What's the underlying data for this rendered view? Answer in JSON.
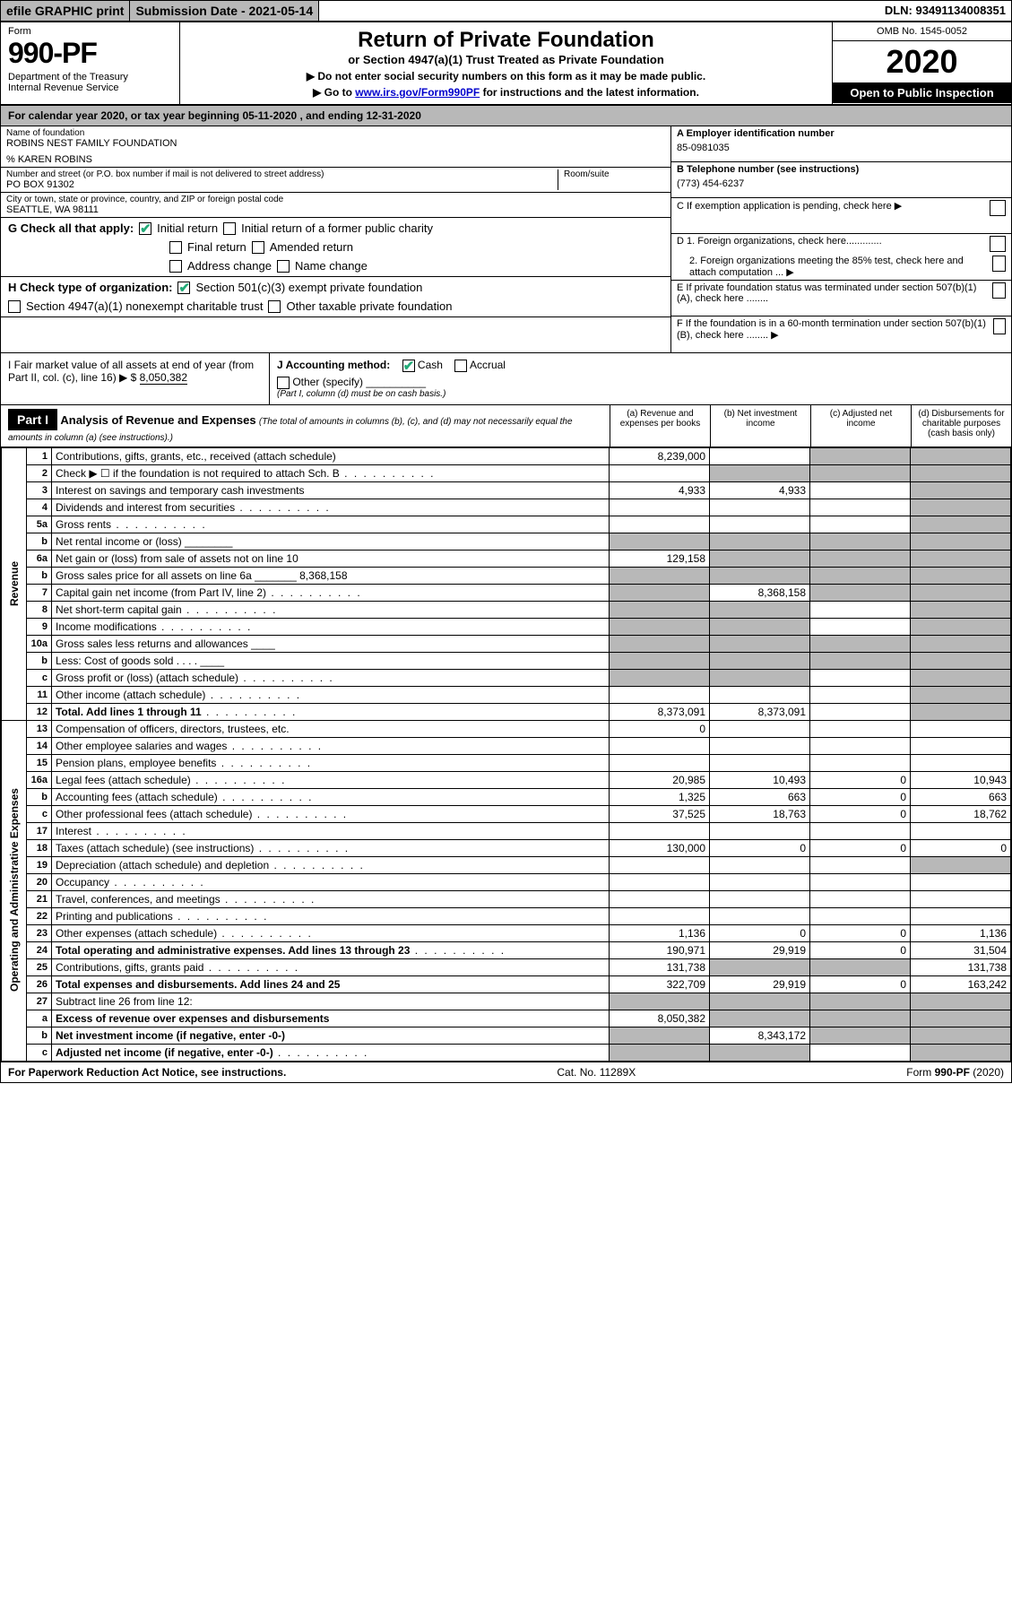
{
  "top": {
    "efile": "efile GRAPHIC print",
    "submission": "Submission Date - 2021-05-14",
    "dln": "DLN: 93491134008351"
  },
  "header": {
    "form_label": "Form",
    "form_number": "990-PF",
    "dept": "Department of the Treasury\nInternal Revenue Service",
    "title": "Return of Private Foundation",
    "subtitle": "or Section 4947(a)(1) Trust Treated as Private Foundation",
    "note1": "▶ Do not enter social security numbers on this form as it may be made public.",
    "note2": "▶ Go to ",
    "link": "www.irs.gov/Form990PF",
    "note2b": " for instructions and the latest information.",
    "omb": "OMB No. 1545-0052",
    "year": "2020",
    "inspect": "Open to Public Inspection"
  },
  "cal_year": "For calendar year 2020, or tax year beginning 05-11-2020                           , and ending 12-31-2020",
  "foundation": {
    "name_label": "Name of foundation",
    "name": "ROBINS NEST FAMILY FOUNDATION",
    "care_of": "% KAREN ROBINS",
    "street_label": "Number and street (or P.O. box number if mail is not delivered to street address)",
    "street": "PO BOX 91302",
    "room_label": "Room/suite",
    "city_label": "City or town, state or province, country, and ZIP or foreign postal code",
    "city": "SEATTLE, WA  98111",
    "ein_label": "A Employer identification number",
    "ein": "85-0981035",
    "phone_label": "B Telephone number (see instructions)",
    "phone": "(773) 454-6237",
    "c_label": "C If exemption application is pending, check here ▶",
    "d1": "D 1. Foreign organizations, check here.............",
    "d2": "2. Foreign organizations meeting the 85% test, check here and attach computation ...  ▶",
    "e": "E  If private foundation status was terminated under section 507(b)(1)(A), check here ........",
    "f": "F  If the foundation is in a 60-month termination under section 507(b)(1)(B), check here ........  ▶"
  },
  "g": {
    "label": "G Check all that apply:",
    "initial": "Initial return",
    "initial_former": "Initial return of a former public charity",
    "final": "Final return",
    "amended": "Amended return",
    "address": "Address change",
    "name_change": "Name change"
  },
  "h": {
    "label": "H Check type of organization:",
    "opt1": "Section 501(c)(3) exempt private foundation",
    "opt2": "Section 4947(a)(1) nonexempt charitable trust",
    "opt3": "Other taxable private foundation"
  },
  "i": {
    "label": "I Fair market value of all assets at end of year (from Part II, col. (c), line 16)  ▶ $",
    "value": "8,050,382"
  },
  "j": {
    "label": "J Accounting method:",
    "cash": "Cash",
    "accrual": "Accrual",
    "other": "Other (specify)",
    "note": "(Part I, column (d) must be on cash basis.)"
  },
  "part1": {
    "label": "Part I",
    "title": "Analysis of Revenue and Expenses",
    "sub": "(The total of amounts in columns (b), (c), and (d) may not necessarily equal the amounts in column (a) (see instructions).)",
    "col_a": "(a)    Revenue and expenses per books",
    "col_b": "(b)  Net investment income",
    "col_c": "(c)  Adjusted net income",
    "col_d": "(d)  Disbursements for charitable purposes (cash basis only)"
  },
  "sections": {
    "revenue": "Revenue",
    "expenses": "Operating and Administrative Expenses"
  },
  "rows": [
    {
      "n": "1",
      "desc": "Contributions, gifts, grants, etc., received (attach schedule)",
      "a": "8,239,000",
      "b": "",
      "c": "na",
      "d": "na"
    },
    {
      "n": "2",
      "desc": "Check ▶ ☐ if the foundation is not required to attach Sch. B",
      "a": "",
      "b": "na",
      "c": "na",
      "d": "na",
      "dots": true
    },
    {
      "n": "3",
      "desc": "Interest on savings and temporary cash investments",
      "a": "4,933",
      "b": "4,933",
      "c": "",
      "d": "na"
    },
    {
      "n": "4",
      "desc": "Dividends and interest from securities",
      "a": "",
      "b": "",
      "c": "",
      "d": "na",
      "dots": true
    },
    {
      "n": "5a",
      "desc": "Gross rents",
      "a": "",
      "b": "",
      "c": "",
      "d": "na",
      "dots": true
    },
    {
      "n": "b",
      "desc": "Net rental income or (loss)  ________",
      "a": "na",
      "b": "na",
      "c": "na",
      "d": "na"
    },
    {
      "n": "6a",
      "desc": "Net gain or (loss) from sale of assets not on line 10",
      "a": "129,158",
      "b": "na",
      "c": "na",
      "d": "na"
    },
    {
      "n": "b",
      "desc": "Gross sales price for all assets on line 6a _______ 8,368,158",
      "a": "na",
      "b": "na",
      "c": "na",
      "d": "na"
    },
    {
      "n": "7",
      "desc": "Capital gain net income (from Part IV, line 2)",
      "a": "na",
      "b": "8,368,158",
      "c": "na",
      "d": "na",
      "dots": true
    },
    {
      "n": "8",
      "desc": "Net short-term capital gain",
      "a": "na",
      "b": "na",
      "c": "",
      "d": "na",
      "dots": true
    },
    {
      "n": "9",
      "desc": "Income modifications",
      "a": "na",
      "b": "na",
      "c": "",
      "d": "na",
      "dots": true
    },
    {
      "n": "10a",
      "desc": "Gross sales less returns and allowances  ____",
      "a": "na",
      "b": "na",
      "c": "na",
      "d": "na"
    },
    {
      "n": "b",
      "desc": "Less: Cost of goods sold    . . . .  ____",
      "a": "na",
      "b": "na",
      "c": "na",
      "d": "na"
    },
    {
      "n": "c",
      "desc": "Gross profit or (loss) (attach schedule)",
      "a": "na",
      "b": "na",
      "c": "",
      "d": "na",
      "dots": true
    },
    {
      "n": "11",
      "desc": "Other income (attach schedule)",
      "a": "",
      "b": "",
      "c": "",
      "d": "na",
      "dots": true
    },
    {
      "n": "12",
      "desc": "Total. Add lines 1 through 11",
      "a": "8,373,091",
      "b": "8,373,091",
      "c": "",
      "d": "na",
      "bold": true,
      "dots": true
    },
    {
      "n": "13",
      "desc": "Compensation of officers, directors, trustees, etc.",
      "a": "0",
      "b": "",
      "c": "",
      "d": ""
    },
    {
      "n": "14",
      "desc": "Other employee salaries and wages",
      "a": "",
      "b": "",
      "c": "",
      "d": "",
      "dots": true
    },
    {
      "n": "15",
      "desc": "Pension plans, employee benefits",
      "a": "",
      "b": "",
      "c": "",
      "d": "",
      "dots": true
    },
    {
      "n": "16a",
      "desc": "Legal fees (attach schedule)",
      "a": "20,985",
      "b": "10,493",
      "c": "0",
      "d": "10,943",
      "dots": true
    },
    {
      "n": "b",
      "desc": "Accounting fees (attach schedule)",
      "a": "1,325",
      "b": "663",
      "c": "0",
      "d": "663",
      "dots": true
    },
    {
      "n": "c",
      "desc": "Other professional fees (attach schedule)",
      "a": "37,525",
      "b": "18,763",
      "c": "0",
      "d": "18,762",
      "dots": true
    },
    {
      "n": "17",
      "desc": "Interest",
      "a": "",
      "b": "",
      "c": "",
      "d": "",
      "dots": true
    },
    {
      "n": "18",
      "desc": "Taxes (attach schedule) (see instructions)",
      "a": "130,000",
      "b": "0",
      "c": "0",
      "d": "0",
      "dots": true
    },
    {
      "n": "19",
      "desc": "Depreciation (attach schedule) and depletion",
      "a": "",
      "b": "",
      "c": "",
      "d": "na",
      "dots": true
    },
    {
      "n": "20",
      "desc": "Occupancy",
      "a": "",
      "b": "",
      "c": "",
      "d": "",
      "dots": true
    },
    {
      "n": "21",
      "desc": "Travel, conferences, and meetings",
      "a": "",
      "b": "",
      "c": "",
      "d": "",
      "dots": true
    },
    {
      "n": "22",
      "desc": "Printing and publications",
      "a": "",
      "b": "",
      "c": "",
      "d": "",
      "dots": true
    },
    {
      "n": "23",
      "desc": "Other expenses (attach schedule)",
      "a": "1,136",
      "b": "0",
      "c": "0",
      "d": "1,136",
      "dots": true
    },
    {
      "n": "24",
      "desc": "Total operating and administrative expenses. Add lines 13 through 23",
      "a": "190,971",
      "b": "29,919",
      "c": "0",
      "d": "31,504",
      "bold": true,
      "dots": true
    },
    {
      "n": "25",
      "desc": "Contributions, gifts, grants paid",
      "a": "131,738",
      "b": "na",
      "c": "na",
      "d": "131,738",
      "dots": true
    },
    {
      "n": "26",
      "desc": "Total expenses and disbursements. Add lines 24 and 25",
      "a": "322,709",
      "b": "29,919",
      "c": "0",
      "d": "163,242",
      "bold": true
    },
    {
      "n": "27",
      "desc": "Subtract line 26 from line 12:",
      "a": "na",
      "b": "na",
      "c": "na",
      "d": "na"
    },
    {
      "n": "a",
      "desc": "Excess of revenue over expenses and disbursements",
      "a": "8,050,382",
      "b": "na",
      "c": "na",
      "d": "na",
      "bold": true
    },
    {
      "n": "b",
      "desc": "Net investment income (if negative, enter -0-)",
      "a": "na",
      "b": "8,343,172",
      "c": "na",
      "d": "na",
      "bold": true
    },
    {
      "n": "c",
      "desc": "Adjusted net income (if negative, enter -0-)",
      "a": "na",
      "b": "na",
      "c": "",
      "d": "na",
      "bold": true,
      "dots": true
    }
  ],
  "footer": {
    "left": "For Paperwork Reduction Act Notice, see instructions.",
    "mid": "Cat. No. 11289X",
    "right": "Form 990-PF (2020)"
  }
}
